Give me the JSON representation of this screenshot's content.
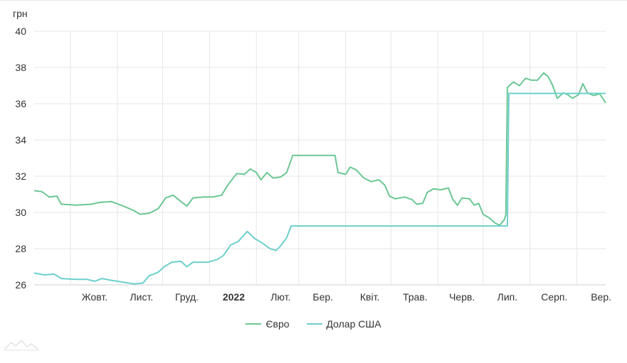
{
  "chart_data": {
    "type": "line",
    "ylabel": "грн",
    "ylim": [
      26,
      40
    ],
    "yticks": [
      26,
      28,
      30,
      32,
      34,
      36,
      38,
      40
    ],
    "grid": true,
    "legend_position": "bottom",
    "x_tick_labels": [
      {
        "label": "Жовт.",
        "date": "2021-10-01",
        "bold": false
      },
      {
        "label": "Лист.",
        "date": "2021-11-01",
        "bold": false
      },
      {
        "label": "Груд.",
        "date": "2021-12-01",
        "bold": false
      },
      {
        "label": "2022",
        "date": "2022-01-01",
        "bold": true
      },
      {
        "label": "Лют.",
        "date": "2022-02-01",
        "bold": false
      },
      {
        "label": "Бер.",
        "date": "2022-03-01",
        "bold": false
      },
      {
        "label": "Квіт.",
        "date": "2022-04-01",
        "bold": false
      },
      {
        "label": "Трав.",
        "date": "2022-05-01",
        "bold": false
      },
      {
        "label": "Черв.",
        "date": "2022-06-01",
        "bold": false
      },
      {
        "label": "Лип.",
        "date": "2022-07-01",
        "bold": false
      },
      {
        "label": "Серп.",
        "date": "2022-08-01",
        "bold": false
      },
      {
        "label": "Вер.",
        "date": "2022-09-01",
        "bold": false
      }
    ],
    "xlim": [
      "2021-09-07",
      "2022-09-20"
    ],
    "series": [
      {
        "name": "Євро",
        "color": "#6cc794",
        "points": [
          [
            "2021-09-07",
            31.2
          ],
          [
            "2021-09-12",
            31.15
          ],
          [
            "2021-09-17",
            30.85
          ],
          [
            "2021-09-22",
            30.9
          ],
          [
            "2021-09-25",
            30.45
          ],
          [
            "2021-10-05",
            30.4
          ],
          [
            "2021-10-15",
            30.45
          ],
          [
            "2021-10-20",
            30.55
          ],
          [
            "2021-10-28",
            30.6
          ],
          [
            "2021-11-05",
            30.35
          ],
          [
            "2021-11-12",
            30.1
          ],
          [
            "2021-11-16",
            29.9
          ],
          [
            "2021-11-22",
            29.95
          ],
          [
            "2021-11-28",
            30.2
          ],
          [
            "2021-12-03",
            30.8
          ],
          [
            "2021-12-08",
            30.95
          ],
          [
            "2021-12-13",
            30.6
          ],
          [
            "2021-12-17",
            30.35
          ],
          [
            "2021-12-21",
            30.8
          ],
          [
            "2021-12-28",
            30.85
          ],
          [
            "2022-01-03",
            30.85
          ],
          [
            "2022-01-09",
            30.95
          ],
          [
            "2022-01-13",
            31.5
          ],
          [
            "2022-01-19",
            32.15
          ],
          [
            "2022-01-24",
            32.1
          ],
          [
            "2022-01-28",
            32.4
          ],
          [
            "2022-02-01",
            32.2
          ],
          [
            "2022-02-04",
            31.8
          ],
          [
            "2022-02-08",
            32.2
          ],
          [
            "2022-02-12",
            31.9
          ],
          [
            "2022-02-17",
            31.95
          ],
          [
            "2022-02-21",
            32.2
          ],
          [
            "2022-02-25",
            33.15
          ],
          [
            "2022-03-12",
            33.15
          ],
          [
            "2022-03-25",
            33.15
          ],
          [
            "2022-03-27",
            32.2
          ],
          [
            "2022-04-01",
            32.1
          ],
          [
            "2022-04-04",
            32.5
          ],
          [
            "2022-04-08",
            32.35
          ],
          [
            "2022-04-13",
            31.9
          ],
          [
            "2022-04-18",
            31.7
          ],
          [
            "2022-04-23",
            31.8
          ],
          [
            "2022-04-27",
            31.5
          ],
          [
            "2022-04-30",
            30.9
          ],
          [
            "2022-05-04",
            30.75
          ],
          [
            "2022-05-10",
            30.85
          ],
          [
            "2022-05-15",
            30.7
          ],
          [
            "2022-05-18",
            30.45
          ],
          [
            "2022-05-22",
            30.5
          ],
          [
            "2022-05-25",
            31.1
          ],
          [
            "2022-05-29",
            31.3
          ],
          [
            "2022-06-03",
            31.25
          ],
          [
            "2022-06-08",
            31.35
          ],
          [
            "2022-06-11",
            30.7
          ],
          [
            "2022-06-14",
            30.4
          ],
          [
            "2022-06-17",
            30.8
          ],
          [
            "2022-06-22",
            30.75
          ],
          [
            "2022-06-25",
            30.4
          ],
          [
            "2022-06-28",
            30.5
          ],
          [
            "2022-07-01",
            29.9
          ],
          [
            "2022-07-05",
            29.7
          ],
          [
            "2022-07-09",
            29.4
          ],
          [
            "2022-07-12",
            29.3
          ],
          [
            "2022-07-15",
            29.6
          ],
          [
            "2022-07-16",
            29.9
          ],
          [
            "2022-07-17",
            36.9
          ],
          [
            "2022-07-21",
            37.2
          ],
          [
            "2022-07-25",
            37.0
          ],
          [
            "2022-07-29",
            37.4
          ],
          [
            "2022-08-02",
            37.3
          ],
          [
            "2022-08-06",
            37.3
          ],
          [
            "2022-08-10",
            37.7
          ],
          [
            "2022-08-13",
            37.5
          ],
          [
            "2022-08-16",
            37.0
          ],
          [
            "2022-08-19",
            36.3
          ],
          [
            "2022-08-23",
            36.6
          ],
          [
            "2022-08-26",
            36.5
          ],
          [
            "2022-08-29",
            36.3
          ],
          [
            "2022-09-02",
            36.5
          ],
          [
            "2022-09-05",
            37.1
          ],
          [
            "2022-09-08",
            36.6
          ],
          [
            "2022-09-12",
            36.45
          ],
          [
            "2022-09-16",
            36.55
          ],
          [
            "2022-09-20",
            36.05
          ]
        ]
      },
      {
        "name": "Долар США",
        "color": "#6dcfcc",
        "points": [
          [
            "2021-09-07",
            26.65
          ],
          [
            "2021-09-14",
            26.55
          ],
          [
            "2021-09-20",
            26.6
          ],
          [
            "2021-09-25",
            26.35
          ],
          [
            "2021-10-05",
            26.3
          ],
          [
            "2021-10-12",
            26.3
          ],
          [
            "2021-10-17",
            26.2
          ],
          [
            "2021-10-22",
            26.35
          ],
          [
            "2021-10-28",
            26.25
          ],
          [
            "2021-11-05",
            26.15
          ],
          [
            "2021-11-12",
            26.05
          ],
          [
            "2021-11-18",
            26.1
          ],
          [
            "2021-11-22",
            26.5
          ],
          [
            "2021-11-28",
            26.7
          ],
          [
            "2021-12-02",
            27.0
          ],
          [
            "2021-12-07",
            27.25
          ],
          [
            "2021-12-13",
            27.3
          ],
          [
            "2021-12-17",
            27.0
          ],
          [
            "2021-12-21",
            27.25
          ],
          [
            "2021-12-31",
            27.25
          ],
          [
            "2022-01-06",
            27.4
          ],
          [
            "2022-01-10",
            27.6
          ],
          [
            "2022-01-15",
            28.2
          ],
          [
            "2022-01-20",
            28.4
          ],
          [
            "2022-01-26",
            28.95
          ],
          [
            "2022-01-31",
            28.55
          ],
          [
            "2022-02-05",
            28.3
          ],
          [
            "2022-02-10",
            28.0
          ],
          [
            "2022-02-14",
            27.9
          ],
          [
            "2022-02-17",
            28.15
          ],
          [
            "2022-02-21",
            28.6
          ],
          [
            "2022-02-24",
            29.25
          ],
          [
            "2022-07-17",
            29.25
          ],
          [
            "2022-07-18",
            36.57
          ],
          [
            "2022-09-20",
            36.57
          ]
        ]
      }
    ]
  }
}
